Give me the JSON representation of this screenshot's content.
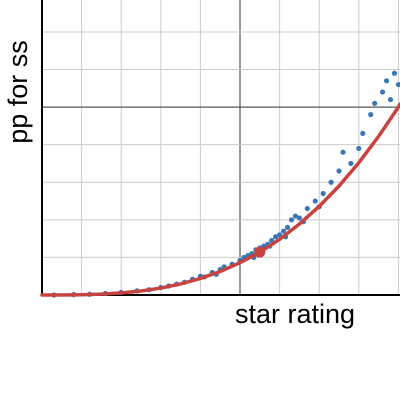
{
  "chart_data": {
    "type": "scatter",
    "x_label": "star rating",
    "y_label": "pp for ss",
    "xlim": [
      0,
      9.04
    ],
    "ylim": [
      0,
      7.85
    ],
    "xticks": [
      1,
      2,
      3,
      4,
      5,
      6,
      7,
      8,
      9
    ],
    "yticks": [
      1,
      2,
      3,
      4,
      5,
      6,
      7
    ],
    "major_xticks": [
      5
    ],
    "major_yticks": [
      5
    ],
    "grid": true,
    "color": "#3a78b5",
    "x": [
      0.3,
      0.8,
      1.2,
      1.6,
      2.0,
      2.4,
      2.7,
      3.0,
      3.2,
      3.4,
      3.6,
      3.8,
      4.0,
      4.1,
      4.3,
      4.5,
      4.6,
      4.8,
      5.0,
      5.1,
      5.2,
      5.3,
      5.4,
      5.5,
      5.6,
      5.7,
      5.8,
      5.9,
      6.0,
      6.1,
      6.2,
      6.3,
      6.4,
      6.5,
      6.7,
      6.9,
      7.1,
      7.3,
      7.5,
      7.6,
      7.8,
      8.0,
      8.1,
      8.3,
      8.4,
      8.6,
      8.7,
      8.8,
      8.9,
      9.0,
      4.4,
      5.35,
      5.75,
      6.15,
      6.6,
      7.0
    ],
    "values": [
      0,
      0.01,
      0.02,
      0.04,
      0.07,
      0.11,
      0.14,
      0.2,
      0.24,
      0.29,
      0.34,
      0.42,
      0.5,
      0.48,
      0.6,
      0.68,
      0.75,
      0.82,
      0.92,
      1.0,
      1.05,
      1.1,
      1.2,
      1.25,
      1.3,
      1.35,
      1.45,
      1.55,
      1.6,
      1.7,
      1.8,
      2.0,
      2.1,
      2.05,
      2.3,
      2.5,
      2.7,
      3.0,
      3.3,
      3.8,
      3.5,
      3.9,
      4.3,
      4.8,
      5.1,
      5.4,
      5.7,
      5.2,
      5.9,
      5.6,
      0.55,
      1.0,
      1.3,
      1.55,
      1.95,
      2.35
    ],
    "fit": {
      "color": "#c8423f",
      "x": [
        0,
        0.5,
        1,
        1.5,
        2,
        2.5,
        3,
        3.5,
        4,
        4.5,
        5,
        5.5,
        6,
        6.5,
        7,
        7.5,
        8,
        8.5,
        9,
        9.04
      ],
      "values": [
        0,
        0.0009,
        0.007,
        0.023,
        0.055,
        0.107,
        0.185,
        0.295,
        0.44,
        0.626,
        0.86,
        1.14,
        1.48,
        1.89,
        2.36,
        2.9,
        3.52,
        4.22,
        5.0,
        5.08
      ]
    },
    "highlight": {
      "x": 5.5,
      "value": 1.14,
      "color": "#c8423f"
    }
  }
}
